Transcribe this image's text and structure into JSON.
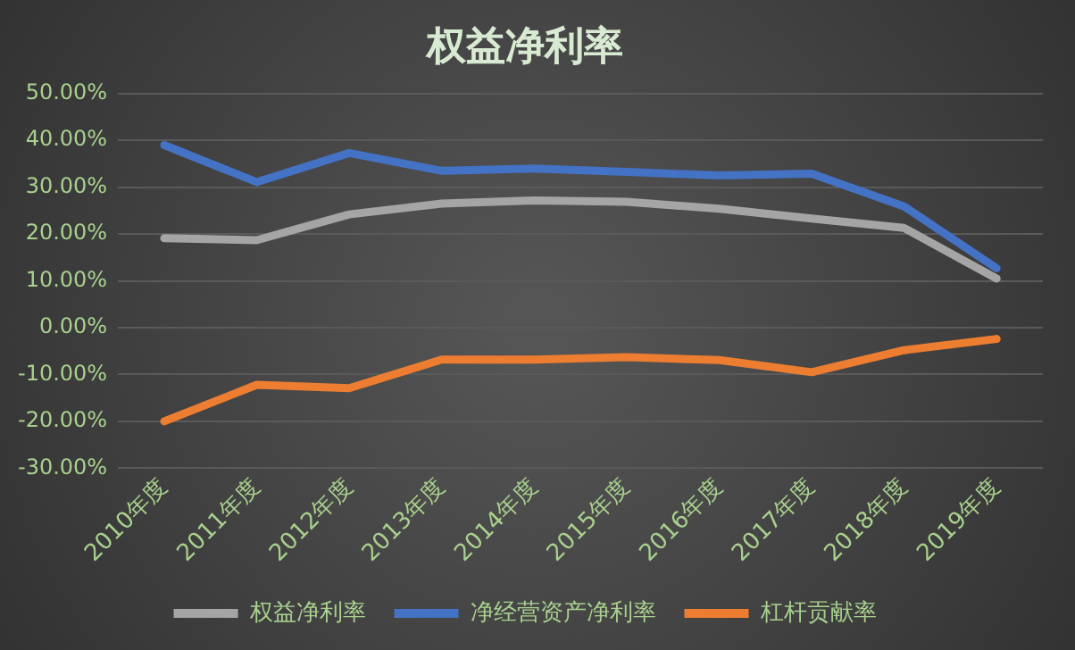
{
  "chart_data": {
    "type": "line",
    "title": "权益净利率",
    "categories": [
      "2010年度",
      "2011年度",
      "2012年度",
      "2013年度",
      "2014年度",
      "2015年度",
      "2016年度",
      "2017年度",
      "2018年度",
      "2019年度"
    ],
    "series": [
      {
        "name": "权益净利率",
        "color": "#a5a5a5",
        "values": [
          19.1,
          18.7,
          24.2,
          26.5,
          27.2,
          26.9,
          25.4,
          23.3,
          21.3,
          10.5
        ]
      },
      {
        "name": "净经营资产净利率",
        "color": "#4472c4",
        "values": [
          39.0,
          31.1,
          37.3,
          33.5,
          34.0,
          33.3,
          32.5,
          32.9,
          25.9,
          12.7
        ]
      },
      {
        "name": "杠杆贡献率",
        "color": "#ed7d31",
        "values": [
          -20.0,
          -12.2,
          -12.9,
          -6.8,
          -6.8,
          -6.3,
          -6.9,
          -9.5,
          -4.8,
          -2.4
        ]
      }
    ],
    "ylim": [
      -30,
      50
    ],
    "yticks": [
      {
        "value": -30,
        "label": "-30.00%"
      },
      {
        "value": -20,
        "label": "-20.00%"
      },
      {
        "value": -10,
        "label": "-10.00%"
      },
      {
        "value": 0,
        "label": "0.00%"
      },
      {
        "value": 10,
        "label": "10.00%"
      },
      {
        "value": 20,
        "label": "20.00%"
      },
      {
        "value": 30,
        "label": "30.00%"
      },
      {
        "value": 40,
        "label": "40.00%"
      },
      {
        "value": 50,
        "label": "50.00%"
      }
    ],
    "grid": "y",
    "legend": "bottom",
    "marker": "none",
    "line_style": "solid"
  }
}
